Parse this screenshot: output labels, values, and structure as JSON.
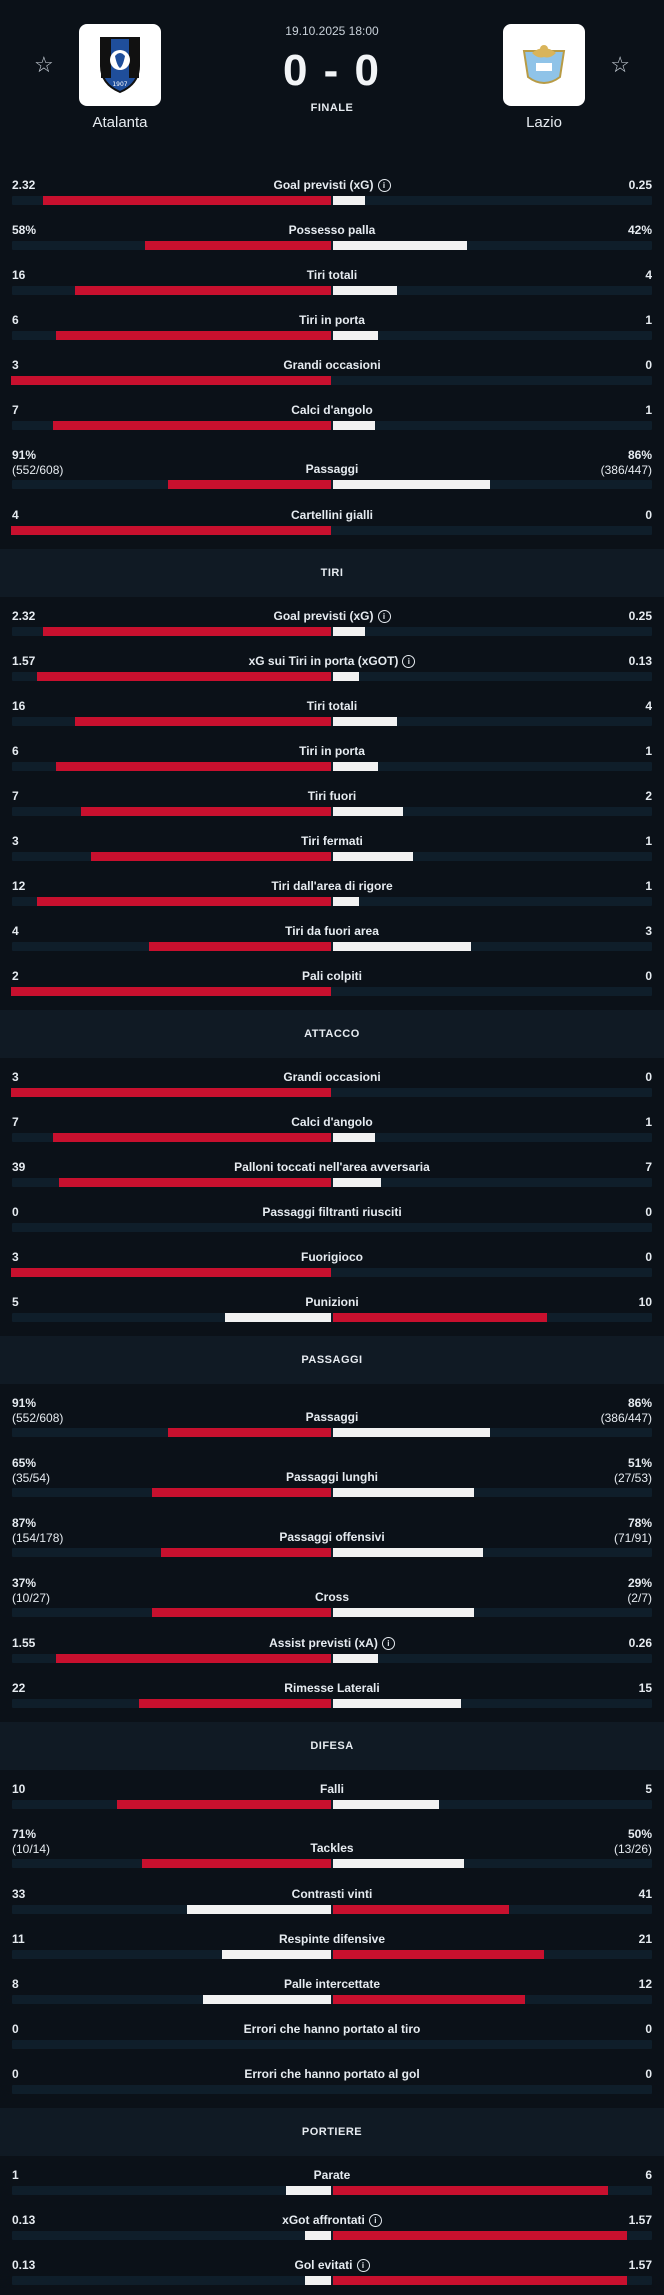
{
  "match": {
    "date": "19.10.2025 18:00",
    "score": "0 - 0",
    "status": "FINALE",
    "home": "Atalanta",
    "away": "Lazio"
  },
  "colors": {
    "home": "#c8102e",
    "away": "#f2f2f2",
    "bg": "#0b1118",
    "track": "#0f1e2a"
  },
  "groups": [
    {
      "title": "",
      "stats": [
        {
          "name": "Goal previsti (xG)",
          "info": true,
          "l": "2.32",
          "r": "0.25",
          "lp": 0.9,
          "rp": 0.1
        },
        {
          "name": "Possesso palla",
          "l": "58%",
          "r": "42%",
          "lp": 0.58,
          "rp": 0.42
        },
        {
          "name": "Tiri totali",
          "l": "16",
          "r": "4",
          "lp": 0.8,
          "rp": 0.2
        },
        {
          "name": "Tiri in porta",
          "l": "6",
          "r": "1",
          "lp": 0.86,
          "rp": 0.14
        },
        {
          "name": "Grandi occasioni",
          "l": "3",
          "r": "0",
          "lp": 1,
          "rp": 0
        },
        {
          "name": "Calci d'angolo",
          "l": "7",
          "r": "1",
          "lp": 0.87,
          "rp": 0.13
        },
        {
          "name": "Passaggi",
          "l": "91%",
          "ls": "(552/608)",
          "r": "86%",
          "rs": "(386/447)",
          "lp": 0.51,
          "rp": 0.49
        },
        {
          "name": "Cartellini gialli",
          "l": "4",
          "r": "0",
          "lp": 1,
          "rp": 0
        }
      ]
    },
    {
      "title": "TIRI",
      "stats": [
        {
          "name": "Goal previsti (xG)",
          "info": true,
          "l": "2.32",
          "r": "0.25",
          "lp": 0.9,
          "rp": 0.1
        },
        {
          "name": "xG sui Tiri in porta (xGOT)",
          "info": true,
          "l": "1.57",
          "r": "0.13",
          "lp": 0.92,
          "rp": 0.08
        },
        {
          "name": "Tiri totali",
          "l": "16",
          "r": "4",
          "lp": 0.8,
          "rp": 0.2
        },
        {
          "name": "Tiri in porta",
          "l": "6",
          "r": "1",
          "lp": 0.86,
          "rp": 0.14
        },
        {
          "name": "Tiri fuori",
          "l": "7",
          "r": "2",
          "lp": 0.78,
          "rp": 0.22
        },
        {
          "name": "Tiri fermati",
          "l": "3",
          "r": "1",
          "lp": 0.75,
          "rp": 0.25
        },
        {
          "name": "Tiri dall'area di rigore",
          "l": "12",
          "r": "1",
          "lp": 0.92,
          "rp": 0.08
        },
        {
          "name": "Tiri da fuori area",
          "l": "4",
          "r": "3",
          "lp": 0.57,
          "rp": 0.43
        },
        {
          "name": "Pali colpiti",
          "l": "2",
          "r": "0",
          "lp": 1,
          "rp": 0
        }
      ]
    },
    {
      "title": "ATTACCO",
      "stats": [
        {
          "name": "Grandi occasioni",
          "l": "3",
          "r": "0",
          "lp": 1,
          "rp": 0
        },
        {
          "name": "Calci d'angolo",
          "l": "7",
          "r": "1",
          "lp": 0.87,
          "rp": 0.13
        },
        {
          "name": "Palloni toccati nell'area avversaria",
          "l": "39",
          "r": "7",
          "lp": 0.85,
          "rp": 0.15
        },
        {
          "name": "Passaggi filtranti riusciti",
          "l": "0",
          "r": "0",
          "lp": 0,
          "rp": 0
        },
        {
          "name": "Fuorigioco",
          "l": "3",
          "r": "0",
          "lp": 1,
          "rp": 0
        },
        {
          "name": "Punizioni",
          "l": "5",
          "r": "10",
          "lp": 0.33,
          "rp": 0.67,
          "lwhite": true
        }
      ]
    },
    {
      "title": "PASSAGGI",
      "stats": [
        {
          "name": "Passaggi",
          "l": "91%",
          "ls": "(552/608)",
          "r": "86%",
          "rs": "(386/447)",
          "lp": 0.51,
          "rp": 0.49
        },
        {
          "name": "Passaggi lunghi",
          "l": "65%",
          "ls": "(35/54)",
          "r": "51%",
          "rs": "(27/53)",
          "lp": 0.56,
          "rp": 0.44
        },
        {
          "name": "Passaggi offensivi",
          "l": "87%",
          "ls": "(154/178)",
          "r": "78%",
          "rs": "(71/91)",
          "lp": 0.53,
          "rp": 0.47
        },
        {
          "name": "Cross",
          "l": "37%",
          "ls": "(10/27)",
          "r": "29%",
          "rs": "(2/7)",
          "lp": 0.56,
          "rp": 0.44
        },
        {
          "name": "Assist previsti (xA)",
          "info": true,
          "l": "1.55",
          "r": "0.26",
          "lp": 0.86,
          "rp": 0.14
        },
        {
          "name": "Rimesse Laterali",
          "l": "22",
          "r": "15",
          "lp": 0.6,
          "rp": 0.4
        }
      ]
    },
    {
      "title": "DIFESA",
      "stats": [
        {
          "name": "Falli",
          "l": "10",
          "r": "5",
          "lp": 0.67,
          "rp": 0.33
        },
        {
          "name": "Tackles",
          "l": "71%",
          "ls": "(10/14)",
          "r": "50%",
          "rs": "(13/26)",
          "lp": 0.59,
          "rp": 0.41
        },
        {
          "name": "Contrasti vinti",
          "l": "33",
          "r": "41",
          "lp": 0.45,
          "rp": 0.55,
          "lwhite": true
        },
        {
          "name": "Respinte difensive",
          "l": "11",
          "r": "21",
          "lp": 0.34,
          "rp": 0.66,
          "lwhite": true
        },
        {
          "name": "Palle intercettate",
          "l": "8",
          "r": "12",
          "lp": 0.4,
          "rp": 0.6,
          "lwhite": true
        },
        {
          "name": "Errori che hanno portato al tiro",
          "l": "0",
          "r": "0",
          "lp": 0,
          "rp": 0
        },
        {
          "name": "Errori che hanno portato al gol",
          "l": "0",
          "r": "0",
          "lp": 0,
          "rp": 0
        }
      ]
    },
    {
      "title": "PORTIERE",
      "stats": [
        {
          "name": "Parate",
          "l": "1",
          "r": "6",
          "lp": 0.14,
          "rp": 0.86,
          "lwhite": true
        },
        {
          "name": "xGot affrontati",
          "info": true,
          "l": "0.13",
          "r": "1.57",
          "lp": 0.08,
          "rp": 0.92,
          "lwhite": true
        },
        {
          "name": "Gol evitati",
          "info": true,
          "l": "0.13",
          "r": "1.57",
          "lp": 0.08,
          "rp": 0.92,
          "lwhite": true
        }
      ]
    }
  ]
}
